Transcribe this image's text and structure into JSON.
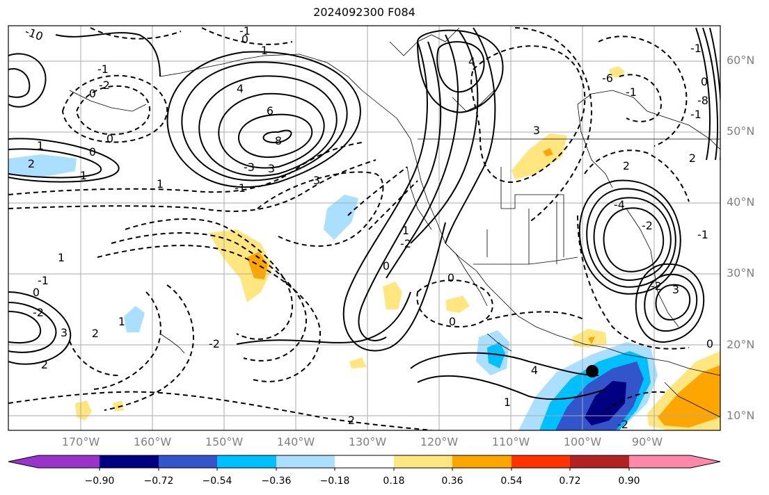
{
  "title": "2024092300 F084",
  "lat_labels": [
    "60°N",
    "50°N",
    "40°N",
    "30°N",
    "20°N",
    "10°N"
  ],
  "lon_labels": [
    "170°W",
    "160°W",
    "150°W",
    "140°W",
    "130°W",
    "120°W",
    "110°W",
    "100°W",
    "90°W"
  ],
  "colorbar": {
    "ticks": [
      "−0.90",
      "−0.72",
      "−0.54",
      "−0.36",
      "−0.18",
      "0.18",
      "0.36",
      "0.54",
      "0.72",
      "0.90"
    ],
    "colors": [
      "#9933cc",
      "#000080",
      "#3355cc",
      "#00bfff",
      "#aadfff",
      "#ffffff",
      "#ffe680",
      "#ffa500",
      "#ff3300",
      "#b22222",
      "#ff88aa"
    ]
  },
  "contour_labels": [
    "-10",
    "-1",
    "0",
    "1",
    "-2",
    "0",
    "4",
    "6",
    "8",
    "-3",
    "-1",
    "3",
    "3",
    "0",
    "1",
    "2",
    "1",
    "1",
    "-1",
    "0",
    "-2",
    "3",
    "2",
    "1",
    "2",
    "-2",
    "0",
    "-2",
    "1",
    "0",
    "0",
    "2",
    "4",
    "-6",
    "-1",
    "3",
    "2",
    "-4",
    "-2",
    "3",
    "4",
    "1",
    "-2",
    "0",
    "-1",
    "2",
    "0",
    "1",
    "-2",
    "-1",
    "-8",
    "-1",
    "0",
    "-1"
  ],
  "point_marker": "storm-center"
}
